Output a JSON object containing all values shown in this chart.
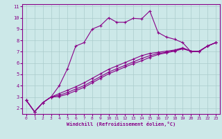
{
  "xlabel": "Windchill (Refroidissement éolien,°C)",
  "bg_color": "#cce8e8",
  "grid_color": "#aacccc",
  "line_color": "#880088",
  "spine_color": "#880088",
  "xlim": [
    -0.5,
    23.5
  ],
  "ylim": [
    1.5,
    11.2
  ],
  "xticks": [
    0,
    1,
    2,
    3,
    4,
    5,
    6,
    7,
    8,
    9,
    10,
    11,
    12,
    13,
    14,
    15,
    16,
    17,
    18,
    19,
    20,
    21,
    22,
    23
  ],
  "yticks": [
    2,
    3,
    4,
    5,
    6,
    7,
    8,
    9,
    10,
    11
  ],
  "line1_x": [
    0,
    1,
    2,
    3,
    4,
    5,
    6,
    7,
    8,
    9,
    10,
    11,
    12,
    13,
    14,
    15,
    16,
    17,
    18,
    19,
    20,
    21,
    22,
    23
  ],
  "line1_y": [
    2.7,
    1.7,
    2.5,
    3.0,
    4.0,
    5.5,
    7.5,
    7.8,
    9.0,
    9.3,
    10.0,
    9.6,
    9.6,
    9.95,
    9.9,
    10.6,
    8.7,
    8.3,
    8.1,
    7.8,
    7.0,
    7.0,
    7.5,
    7.8
  ],
  "line2_x": [
    0,
    1,
    2,
    3,
    4,
    5,
    6,
    7,
    8,
    9,
    10,
    11,
    12,
    13,
    14,
    15,
    16,
    17,
    18,
    19,
    20,
    21,
    22,
    23
  ],
  "line2_y": [
    2.7,
    1.7,
    2.5,
    3.0,
    3.3,
    3.6,
    3.9,
    4.25,
    4.65,
    5.05,
    5.45,
    5.75,
    6.05,
    6.35,
    6.65,
    6.85,
    6.95,
    7.05,
    7.15,
    7.35,
    7.05,
    7.05,
    7.5,
    7.8
  ],
  "line3_x": [
    0,
    1,
    2,
    3,
    4,
    5,
    6,
    7,
    8,
    9,
    10,
    11,
    12,
    13,
    14,
    15,
    16,
    17,
    18,
    19,
    20,
    21,
    22,
    23
  ],
  "line3_y": [
    2.7,
    1.7,
    2.5,
    3.0,
    3.15,
    3.4,
    3.7,
    4.0,
    4.4,
    4.8,
    5.2,
    5.5,
    5.8,
    6.1,
    6.4,
    6.65,
    6.85,
    6.95,
    7.1,
    7.3,
    7.05,
    7.05,
    7.5,
    7.8
  ],
  "line4_x": [
    0,
    1,
    2,
    3,
    4,
    5,
    6,
    7,
    8,
    9,
    10,
    11,
    12,
    13,
    14,
    15,
    16,
    17,
    18,
    19,
    20,
    21,
    22,
    23
  ],
  "line4_y": [
    2.7,
    1.7,
    2.5,
    3.0,
    3.05,
    3.25,
    3.55,
    3.85,
    4.25,
    4.65,
    5.05,
    5.35,
    5.65,
    5.95,
    6.2,
    6.5,
    6.75,
    6.9,
    7.05,
    7.25,
    7.05,
    7.05,
    7.5,
    7.8
  ]
}
